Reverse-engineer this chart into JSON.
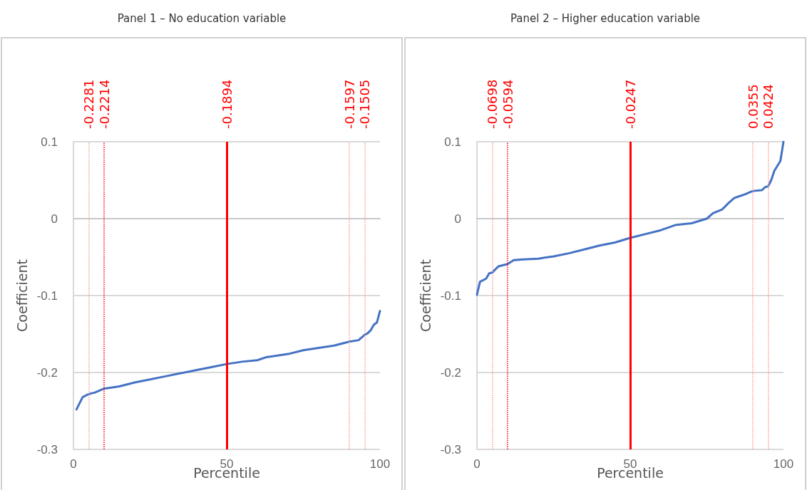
{
  "chart_data": [
    {
      "type": "line",
      "title": "Panel 1 – No education variable",
      "xlabel": "Percentile",
      "ylabel": "Coefficient",
      "x": [
        1,
        2,
        3,
        5,
        7,
        10,
        15,
        20,
        25,
        30,
        35,
        40,
        45,
        50,
        55,
        60,
        63,
        65,
        70,
        75,
        80,
        85,
        90,
        93,
        95,
        96,
        97,
        98,
        99,
        100
      ],
      "series": [
        {
          "color": "#4472c4",
          "values": [
            -0.248,
            -0.24,
            -0.232,
            -0.228,
            -0.226,
            -0.221,
            -0.218,
            -0.213,
            -0.209,
            -0.205,
            -0.201,
            -0.197,
            -0.193,
            -0.189,
            -0.186,
            -0.184,
            -0.18,
            -0.179,
            -0.176,
            -0.171,
            -0.168,
            -0.165,
            -0.16,
            -0.158,
            -0.151,
            -0.149,
            -0.145,
            -0.138,
            -0.135,
            -0.12
          ]
        }
      ],
      "xlim": [
        0,
        100
      ],
      "xticks": [
        0,
        50,
        100
      ],
      "ylim": [
        -0.3,
        0.1
      ],
      "yticks": [
        -0.3,
        -0.2,
        -0.1,
        0,
        0.1
      ],
      "grid": "y",
      "marker": "none",
      "line_style": "solid",
      "ref_lines": [
        {
          "axis": "x",
          "value": 5,
          "color": "#ff9999",
          "line_style": "dotted"
        },
        {
          "axis": "x",
          "value": 10,
          "color": "#ff0000",
          "line_style": "dotted"
        },
        {
          "axis": "x",
          "value": 50,
          "color": "#ff0000",
          "line_style": "solid"
        },
        {
          "axis": "x",
          "value": 90,
          "color": "#ff9999",
          "line_style": "dotted"
        },
        {
          "axis": "x",
          "value": 95,
          "color": "#ff9999",
          "line_style": "dotted"
        }
      ],
      "annotations": [
        "-0.2281",
        "-0.2214",
        "-0.1894",
        "-0.1597",
        "-0.1505"
      ]
    },
    {
      "type": "line",
      "title": "Panel 2 – Higher education variable",
      "xlabel": "Percentile",
      "ylabel": "Coefficient",
      "x": [
        0,
        1,
        3,
        4,
        5,
        7,
        10,
        12,
        15,
        20,
        25,
        30,
        35,
        40,
        45,
        50,
        55,
        60,
        65,
        70,
        75,
        77,
        80,
        82,
        84,
        87,
        90,
        93,
        94,
        95,
        96,
        97,
        99,
        100
      ],
      "series": [
        {
          "color": "#4472c4",
          "values": [
            -0.099,
            -0.082,
            -0.078,
            -0.071,
            -0.07,
            -0.062,
            -0.059,
            -0.054,
            -0.053,
            -0.052,
            -0.049,
            -0.045,
            -0.04,
            -0.035,
            -0.031,
            -0.025,
            -0.02,
            -0.015,
            -0.008,
            -0.006,
            0.0,
            0.007,
            0.012,
            0.02,
            0.027,
            0.031,
            0.036,
            0.037,
            0.041,
            0.042,
            0.05,
            0.062,
            0.075,
            0.1
          ]
        }
      ],
      "xlim": [
        0,
        100
      ],
      "xticks": [
        0,
        50,
        100
      ],
      "ylim": [
        -0.3,
        0.1
      ],
      "yticks": [
        -0.3,
        -0.2,
        -0.1,
        0,
        0.1
      ],
      "grid": "y",
      "marker": "none",
      "line_style": "solid",
      "ref_lines": [
        {
          "axis": "x",
          "value": 5,
          "color": "#ff9999",
          "line_style": "dotted"
        },
        {
          "axis": "x",
          "value": 10,
          "color": "#ff0000",
          "line_style": "dotted"
        },
        {
          "axis": "x",
          "value": 50,
          "color": "#ff0000",
          "line_style": "solid"
        },
        {
          "axis": "x",
          "value": 90,
          "color": "#ff9999",
          "line_style": "dotted"
        },
        {
          "axis": "x",
          "value": 95,
          "color": "#ff9999",
          "line_style": "dotted"
        }
      ],
      "annotations": [
        "-0.0698",
        "-0.0594",
        "-0.0247",
        "0.0355",
        "0.0424"
      ]
    }
  ]
}
